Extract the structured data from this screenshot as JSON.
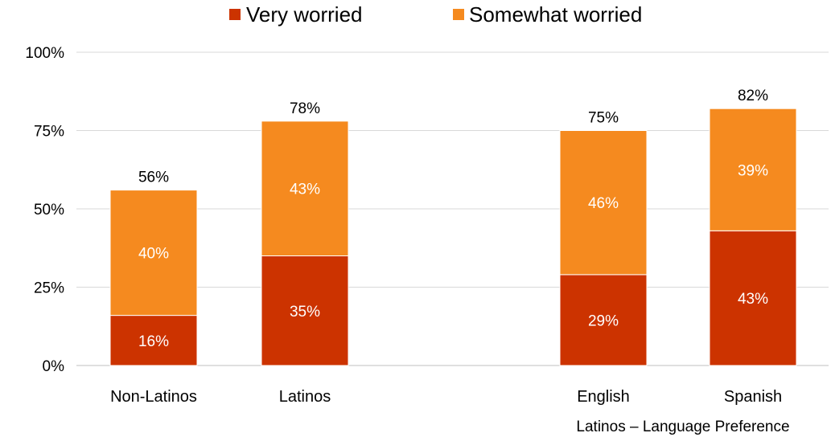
{
  "chart_data": {
    "type": "bar",
    "stacked": true,
    "categories": [
      "Non-Latinos",
      "Latinos",
      "English",
      "Spanish"
    ],
    "series": [
      {
        "name": "Very worried",
        "values": [
          16,
          35,
          29,
          43
        ],
        "labels": [
          "16%",
          "35%",
          "29%",
          "43%"
        ],
        "color": "#cc3300"
      },
      {
        "name": "Somewhat worried",
        "values": [
          40,
          43,
          46,
          39
        ],
        "labels": [
          "40%",
          "43%",
          "46%",
          "39%"
        ],
        "color": "#f58a1f"
      }
    ],
    "totals": [
      56,
      78,
      75,
      82
    ],
    "total_labels": [
      "56%",
      "78%",
      "75%",
      "82%"
    ],
    "yticks": [
      "0%",
      "25%",
      "50%",
      "75%",
      "100%"
    ],
    "ylim": [
      0,
      100
    ],
    "group_label": "Latinos – Language Preference",
    "legend_position": "top",
    "grid": true
  }
}
